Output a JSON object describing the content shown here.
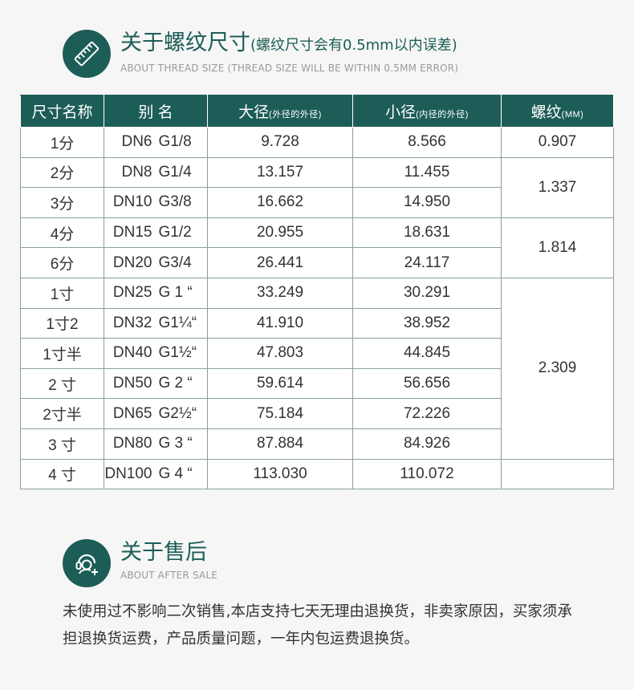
{
  "section_thread": {
    "icon": "ruler-icon",
    "title": "关于螺纹尺寸",
    "note": "(螺纹尺寸会有0.5mm以内误差)",
    "subtitle": "ABOUT THREAD SIZE (THREAD SIZE WILL BE WITHIN 0.5MM ERROR)"
  },
  "table": {
    "headers": {
      "name": "尺寸名称",
      "alias": "别 名",
      "major": "大径",
      "major_note": "(外径的外径)",
      "minor": "小径",
      "minor_note": "(内径的外径)",
      "pitch": "螺纹",
      "pitch_unit": "(MM)"
    },
    "rows": [
      {
        "name": "1分",
        "dn": "DN6",
        "g": "G1/8",
        "major": "9.728",
        "minor": "8.566"
      },
      {
        "name": "2分",
        "dn": "DN8",
        "g": "G1/4",
        "major": "13.157",
        "minor": "11.455"
      },
      {
        "name": "3分",
        "dn": "DN10",
        "g": "G3/8",
        "major": "16.662",
        "minor": "14.950"
      },
      {
        "name": "4分",
        "dn": "DN15",
        "g": "G1/2",
        "major": "20.955",
        "minor": "18.631"
      },
      {
        "name": "6分",
        "dn": "DN20",
        "g": "G3/4",
        "major": "26.441",
        "minor": "24.117"
      },
      {
        "name": "1寸",
        "dn": "DN25",
        "g": "G 1 “",
        "major": "33.249",
        "minor": "30.291"
      },
      {
        "name": "1寸2",
        "dn": "DN32",
        "g": "G1¼“",
        "major": "41.910",
        "minor": "38.952"
      },
      {
        "name": "1寸半",
        "dn": "DN40",
        "g": "G1½“",
        "major": "47.803",
        "minor": "44.845"
      },
      {
        "name": "2 寸",
        "dn": "DN50",
        "g": "G 2 “",
        "major": "59.614",
        "minor": "56.656"
      },
      {
        "name": "2寸半",
        "dn": "DN65",
        "g": "G2½“",
        "major": "75.184",
        "minor": "72.226"
      },
      {
        "name": "3 寸",
        "dn": "DN80",
        "g": "G 3 “",
        "major": "87.884",
        "minor": "84.926"
      },
      {
        "name": "4 寸",
        "dn": "DN100",
        "g": "G 4 “",
        "major": "113.030",
        "minor": "110.072"
      }
    ],
    "pitch_groups": [
      {
        "value": "0.907",
        "span": 1
      },
      {
        "value": "1.337",
        "span": 2
      },
      {
        "value": "1.814",
        "span": 2
      },
      {
        "value": "2.309",
        "span": 6
      },
      {
        "value": "",
        "span": 1
      }
    ]
  },
  "section_aftersale": {
    "icon": "customer-service-icon",
    "title": "关于售后",
    "subtitle": "ABOUT AFTER SALE",
    "text": "未使用过不影响二次销售,本店支持七天无理由退换货，非卖家原因，买家须承担退换货运费，产品质量问题，一年内包运费退换货。"
  }
}
